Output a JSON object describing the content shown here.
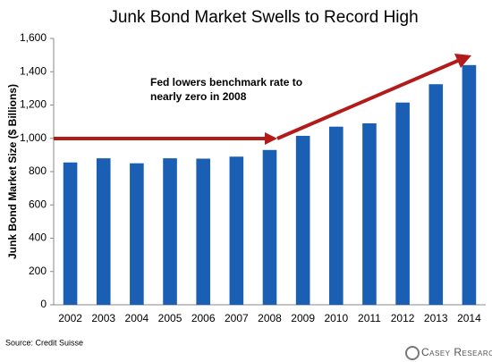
{
  "chart_data": {
    "type": "bar",
    "title": "Junk Bond Market Swells to Record High",
    "y_label": "Junk Bond Market Size ($ Billions)",
    "categories": [
      "2002",
      "2003",
      "2004",
      "2005",
      "2006",
      "2007",
      "2008",
      "2009",
      "2010",
      "2011",
      "2012",
      "2013",
      "2014"
    ],
    "values": [
      855,
      880,
      850,
      880,
      878,
      890,
      930,
      1015,
      1070,
      1090,
      1215,
      1325,
      1440
    ],
    "color": "#1a5fb4",
    "ylim": [
      0,
      1600
    ],
    "yticks": [
      0,
      200,
      400,
      600,
      800,
      {
        "value": 1000,
        "label": "1,000"
      },
      {
        "value": 1200,
        "label": "1,200"
      },
      {
        "value": 1400,
        "label": "1,400"
      },
      {
        "value": 1600,
        "label": "1,600"
      }
    ],
    "grid": false,
    "annotation": [
      "Fed lowers benchmark rate to",
      "nearly zero in 2008"
    ],
    "source": "Source: Credit Suisse",
    "brand": "Casey Research"
  }
}
